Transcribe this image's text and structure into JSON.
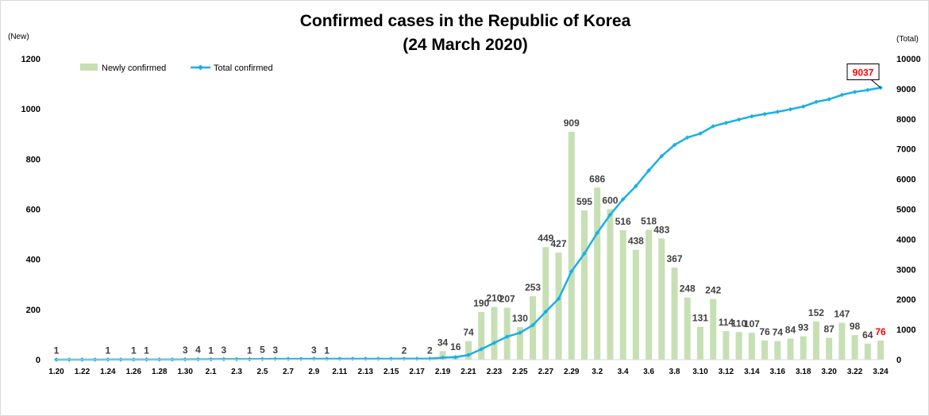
{
  "chart_data": {
    "type": "bar+line",
    "title": "Confirmed cases in the Republic of Korea",
    "subtitle": "(24 March 2020)",
    "y_left_unit": "(New)",
    "y_right_unit": "(Total)",
    "y_left_ticks": [
      "0",
      "200",
      "400",
      "600",
      "800",
      "1000",
      "1200"
    ],
    "y_right_ticks": [
      "0",
      "1000",
      "2000",
      "3000",
      "4000",
      "5000",
      "6000",
      "7000",
      "8000",
      "9000",
      "10000"
    ],
    "ylim_left": [
      0,
      1200
    ],
    "ylim_right": [
      0,
      10000
    ],
    "legend": {
      "position": "top-left",
      "bar": "Newly confirmed",
      "line": "Total confirmed"
    },
    "colors": {
      "bar": "#c6e0b4",
      "line": "#1aafe6",
      "highlight": "#ff0000",
      "label": "#404040"
    },
    "categories": [
      "1.20",
      "1.21",
      "1.22",
      "1.23",
      "1.24",
      "1.25",
      "1.26",
      "1.27",
      "1.28",
      "1.29",
      "1.30",
      "1.31",
      "2.1",
      "2.2",
      "2.3",
      "2.4",
      "2.5",
      "2.6",
      "2.7",
      "2.8",
      "2.9",
      "2.10",
      "2.11",
      "2.12",
      "2.13",
      "2.14",
      "2.15",
      "2.16",
      "2.17",
      "2.18",
      "2.19",
      "2.20",
      "2.21",
      "2.22",
      "2.23",
      "2.24",
      "2.25",
      "2.26",
      "2.27",
      "2.28",
      "2.29",
      "3.1",
      "3.2",
      "3.3",
      "3.4",
      "3.5",
      "3.6",
      "3.7",
      "3.8",
      "3.9",
      "3.10",
      "3.11",
      "3.12",
      "3.13",
      "3.14",
      "3.15",
      "3.16",
      "3.17",
      "3.18",
      "3.19",
      "3.20",
      "3.21",
      "3.22",
      "3.23",
      "3.24"
    ],
    "x_tick_labels": [
      "1.20",
      "1.22",
      "1.24",
      "1.26",
      "1.28",
      "1.30",
      "2.1",
      "2.3",
      "2.5",
      "2.7",
      "2.9",
      "2.11",
      "2.13",
      "2.15",
      "2.17",
      "2.19",
      "2.21",
      "2.23",
      "2.25",
      "2.27",
      "2.29",
      "3.2",
      "3.4",
      "3.6",
      "3.8",
      "3.10",
      "3.12",
      "3.14",
      "3.16",
      "3.18",
      "3.20",
      "3.22",
      "3.24"
    ],
    "series": [
      {
        "name": "Newly confirmed",
        "type": "bar",
        "values": [
          1,
          0,
          0,
          0,
          1,
          0,
          1,
          1,
          0,
          0,
          3,
          4,
          1,
          3,
          0,
          1,
          5,
          3,
          0,
          0,
          3,
          1,
          0,
          0,
          0,
          0,
          0,
          2,
          0,
          2,
          34,
          16,
          74,
          190,
          210,
          207,
          130,
          253,
          449,
          427,
          909,
          595,
          686,
          600,
          516,
          438,
          518,
          483,
          367,
          248,
          131,
          242,
          114,
          110,
          107,
          76,
          74,
          84,
          93,
          152,
          87,
          147,
          98,
          64,
          76
        ]
      },
      {
        "name": "Total confirmed",
        "type": "line",
        "values": [
          1,
          1,
          1,
          1,
          2,
          2,
          3,
          4,
          4,
          4,
          7,
          11,
          12,
          15,
          15,
          16,
          21,
          24,
          24,
          24,
          27,
          28,
          28,
          28,
          28,
          28,
          28,
          30,
          30,
          32,
          66,
          82,
          156,
          346,
          556,
          763,
          893,
          1146,
          1595,
          2022,
          2931,
          3526,
          4212,
          4812,
          5328,
          5766,
          6284,
          6767,
          7134,
          7382,
          7513,
          7755,
          7869,
          7979,
          8086,
          8162,
          8236,
          8320,
          8413,
          8565,
          8652,
          8799,
          8897,
          8961,
          9037
        ]
      }
    ],
    "bar_labels": [
      {
        "index": 0,
        "text": "1"
      },
      {
        "index": 4,
        "text": "1"
      },
      {
        "index": 6,
        "text": "1"
      },
      {
        "index": 7,
        "text": "1"
      },
      {
        "index": 10,
        "text": "3"
      },
      {
        "index": 11,
        "text": "4"
      },
      {
        "index": 12,
        "text": "1"
      },
      {
        "index": 13,
        "text": "3"
      },
      {
        "index": 15,
        "text": "1"
      },
      {
        "index": 16,
        "text": "5"
      },
      {
        "index": 17,
        "text": "3"
      },
      {
        "index": 20,
        "text": "3"
      },
      {
        "index": 21,
        "text": "1"
      },
      {
        "index": 27,
        "text": "2"
      },
      {
        "index": 29,
        "text": "2"
      },
      {
        "index": 30,
        "text": "34"
      },
      {
        "index": 31,
        "text": "16"
      },
      {
        "index": 32,
        "text": "74"
      },
      {
        "index": 33,
        "text": "190"
      },
      {
        "index": 34,
        "text": "210"
      },
      {
        "index": 35,
        "text": "207"
      },
      {
        "index": 36,
        "text": "130"
      },
      {
        "index": 37,
        "text": "253"
      },
      {
        "index": 38,
        "text": "449"
      },
      {
        "index": 39,
        "text": "427"
      },
      {
        "index": 40,
        "text": "909"
      },
      {
        "index": 41,
        "text": "595"
      },
      {
        "index": 42,
        "text": "686"
      },
      {
        "index": 43,
        "text": "600"
      },
      {
        "index": 44,
        "text": "516"
      },
      {
        "index": 45,
        "text": "438"
      },
      {
        "index": 46,
        "text": "518"
      },
      {
        "index": 47,
        "text": "483"
      },
      {
        "index": 48,
        "text": "367"
      },
      {
        "index": 49,
        "text": "248"
      },
      {
        "index": 50,
        "text": "131"
      },
      {
        "index": 51,
        "text": "242"
      },
      {
        "index": 52,
        "text": "114"
      },
      {
        "index": 53,
        "text": "110"
      },
      {
        "index": 54,
        "text": "107"
      },
      {
        "index": 55,
        "text": "76"
      },
      {
        "index": 56,
        "text": "74"
      },
      {
        "index": 57,
        "text": "84"
      },
      {
        "index": 58,
        "text": "93"
      },
      {
        "index": 59,
        "text": "152"
      },
      {
        "index": 60,
        "text": "87"
      },
      {
        "index": 61,
        "text": "147"
      },
      {
        "index": 62,
        "text": "98"
      },
      {
        "index": 63,
        "text": "64"
      },
      {
        "index": 64,
        "text": "76",
        "highlight": true
      }
    ],
    "callout": {
      "text": "9037",
      "index": 64
    }
  }
}
